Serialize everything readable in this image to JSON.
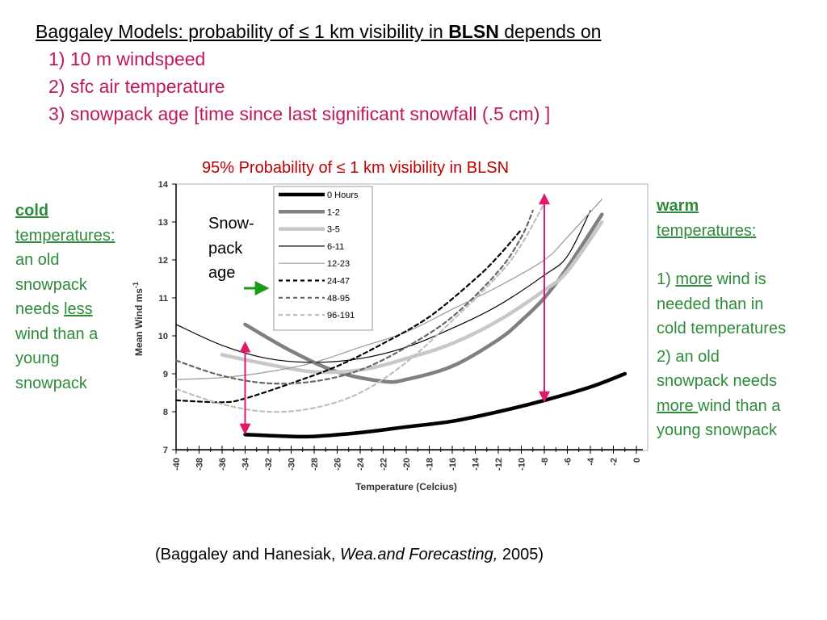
{
  "title": {
    "prefix": "Baggaley Models: probability of ≤ 1 km visibility in ",
    "bold": "BLSN",
    "suffix": " depends on"
  },
  "points": [
    "1) 10 m windspeed",
    "2) sfc air temperature",
    "3) snowpack age [time since last significant snowfall (.5 cm) ]"
  ],
  "left_note": {
    "cold": "cold",
    "temperatures": "temperatures:",
    "line3": "an old",
    "line4": "snowpack",
    "line5a": "needs ",
    "less": "less",
    "line6": "wind than a",
    "line7": "young",
    "line8": "snowpack"
  },
  "right_note": {
    "warm": "warm",
    "temperatures": "temperatures:",
    "p1a": "1) ",
    "more1": "more",
    "p1b": " wind is",
    "p1c": "needed than in",
    "p1d": "cold temperatures",
    "p2a": "2) an old",
    "p2b": "snowpack needs",
    "more2": "more ",
    "p2c": "wind than a",
    "p2d": "young snowpack"
  },
  "snowpack_label": "Snow-pack age",
  "citation": {
    "prefix": "(Baggaley and Hanesiak, ",
    "journal": "Wea.and Forecasting,",
    "year": " 2005)"
  },
  "colors": {
    "title": "#000000",
    "points": "#c0185c",
    "chart_title": "#c00000",
    "notes": "#2e8b3a",
    "arrows": "#e0176e",
    "snowpack_arrow": "#1a9c1a"
  },
  "chart_data": {
    "type": "line",
    "title": "95% Probability of ≤ 1 km visibility in BLSN",
    "xlabel": "Temperature (Celcius)",
    "ylabel": "Mean Wind ms",
    "ylabel_sup": "-1",
    "xlim": [
      -40,
      0
    ],
    "ylim": [
      7,
      14
    ],
    "x_ticks": [
      -40,
      -38,
      -36,
      -34,
      -32,
      -30,
      -28,
      -26,
      -24,
      -22,
      -20,
      -18,
      -16,
      -14,
      -12,
      -10,
      -8,
      -6,
      -4,
      -2,
      0
    ],
    "y_ticks": [
      7,
      8,
      9,
      10,
      11,
      12,
      13,
      14
    ],
    "grid": false,
    "legend_position": "top-left",
    "series": [
      {
        "name": "0 Hours",
        "color": "#000000",
        "dash": "solid",
        "weight": "heavy",
        "points": [
          [
            -34,
            7.4
          ],
          [
            -30,
            7.35
          ],
          [
            -28,
            7.35
          ],
          [
            -24,
            7.45
          ],
          [
            -20,
            7.6
          ],
          [
            -16,
            7.75
          ],
          [
            -12,
            8.0
          ],
          [
            -8,
            8.3
          ],
          [
            -4,
            8.65
          ],
          [
            -1,
            9.0
          ]
        ]
      },
      {
        "name": "1-2",
        "color": "#808080",
        "dash": "solid",
        "weight": "heavy",
        "points": [
          [
            -34,
            10.3
          ],
          [
            -30,
            9.6
          ],
          [
            -26,
            9.05
          ],
          [
            -22,
            8.8
          ],
          [
            -20,
            8.85
          ],
          [
            -16,
            9.2
          ],
          [
            -12,
            9.9
          ],
          [
            -10,
            10.4
          ],
          [
            -8,
            11.0
          ],
          [
            -6,
            11.8
          ],
          [
            -3,
            13.2
          ]
        ]
      },
      {
        "name": "3-5",
        "color": "#c8c8c8",
        "dash": "solid",
        "weight": "heavy",
        "points": [
          [
            -36,
            9.5
          ],
          [
            -32,
            9.25
          ],
          [
            -28,
            9.05
          ],
          [
            -24,
            9.1
          ],
          [
            -20,
            9.4
          ],
          [
            -16,
            9.8
          ],
          [
            -12,
            10.4
          ],
          [
            -8,
            11.2
          ],
          [
            -6,
            11.7
          ],
          [
            -3,
            13.0
          ]
        ]
      },
      {
        "name": "6-11",
        "color": "#000000",
        "dash": "solid",
        "weight": "thin",
        "points": [
          [
            -40,
            10.3
          ],
          [
            -36,
            9.75
          ],
          [
            -32,
            9.4
          ],
          [
            -28,
            9.3
          ],
          [
            -24,
            9.4
          ],
          [
            -20,
            9.7
          ],
          [
            -16,
            10.2
          ],
          [
            -12,
            10.8
          ],
          [
            -8,
            11.6
          ],
          [
            -6,
            12.1
          ],
          [
            -4,
            13.3
          ]
        ]
      },
      {
        "name": "12-23",
        "color": "#999999",
        "dash": "solid",
        "weight": "thin",
        "points": [
          [
            -40,
            8.85
          ],
          [
            -36,
            8.9
          ],
          [
            -32,
            9.05
          ],
          [
            -28,
            9.3
          ],
          [
            -24,
            9.7
          ],
          [
            -20,
            10.1
          ],
          [
            -16,
            10.7
          ],
          [
            -12,
            11.3
          ],
          [
            -8,
            12.0
          ],
          [
            -6,
            12.6
          ],
          [
            -3,
            13.6
          ]
        ]
      },
      {
        "name": "24-47",
        "color": "#000000",
        "dash": "dotted",
        "weight": "medium",
        "points": [
          [
            -40,
            8.3
          ],
          [
            -36,
            8.25
          ],
          [
            -34,
            8.35
          ],
          [
            -30,
            8.75
          ],
          [
            -26,
            9.2
          ],
          [
            -22,
            9.8
          ],
          [
            -18,
            10.5
          ],
          [
            -14,
            11.5
          ],
          [
            -12,
            12.1
          ],
          [
            -10,
            12.8
          ]
        ]
      },
      {
        "name": "48-95",
        "color": "#666666",
        "dash": "dotted",
        "weight": "medium",
        "points": [
          [
            -40,
            9.35
          ],
          [
            -36,
            8.95
          ],
          [
            -32,
            8.75
          ],
          [
            -28,
            8.8
          ],
          [
            -24,
            9.1
          ],
          [
            -20,
            9.7
          ],
          [
            -16,
            10.5
          ],
          [
            -12,
            11.7
          ],
          [
            -10,
            12.6
          ],
          [
            -9,
            13.3
          ]
        ]
      },
      {
        "name": "96-191",
        "color": "#bfbfbf",
        "dash": "dotted",
        "weight": "medium",
        "points": [
          [
            -40,
            8.6
          ],
          [
            -36,
            8.2
          ],
          [
            -32,
            8.0
          ],
          [
            -28,
            8.1
          ],
          [
            -24,
            8.5
          ],
          [
            -20,
            9.3
          ],
          [
            -16,
            10.4
          ],
          [
            -12,
            11.6
          ],
          [
            -10,
            12.4
          ],
          [
            -8,
            13.5
          ]
        ]
      }
    ],
    "annotations": [
      {
        "type": "double-arrow",
        "x": -34,
        "y_from": 7.45,
        "y_to": 9.8
      },
      {
        "type": "double-arrow",
        "x": -8,
        "y_from": 8.3,
        "y_to": 13.7
      }
    ]
  }
}
